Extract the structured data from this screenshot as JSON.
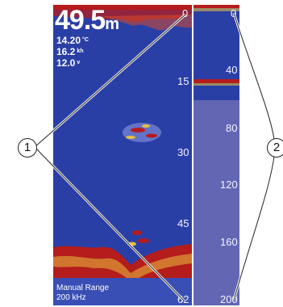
{
  "readout": {
    "depth_value": "49.5",
    "depth_unit": "m",
    "temperature_value": "14.20",
    "temperature_unit": "°C",
    "speed_value": "16.2",
    "speed_unit": "kh",
    "voltage_value": "12.0",
    "voltage_unit": "v"
  },
  "main_scale": [
    "0",
    "15",
    "30",
    "45",
    "62"
  ],
  "side_scale": [
    "0",
    "40",
    "80",
    "120",
    "160",
    "200"
  ],
  "footer": {
    "range_mode": "Manual Range",
    "frequency": "200 kHz"
  },
  "callouts": [
    "1",
    "2"
  ],
  "colors": {
    "water": "#2a3fa6",
    "zoom_shade": "#6266b3",
    "strong_return": "#b51c1c",
    "weak_return": "#e8c040"
  }
}
